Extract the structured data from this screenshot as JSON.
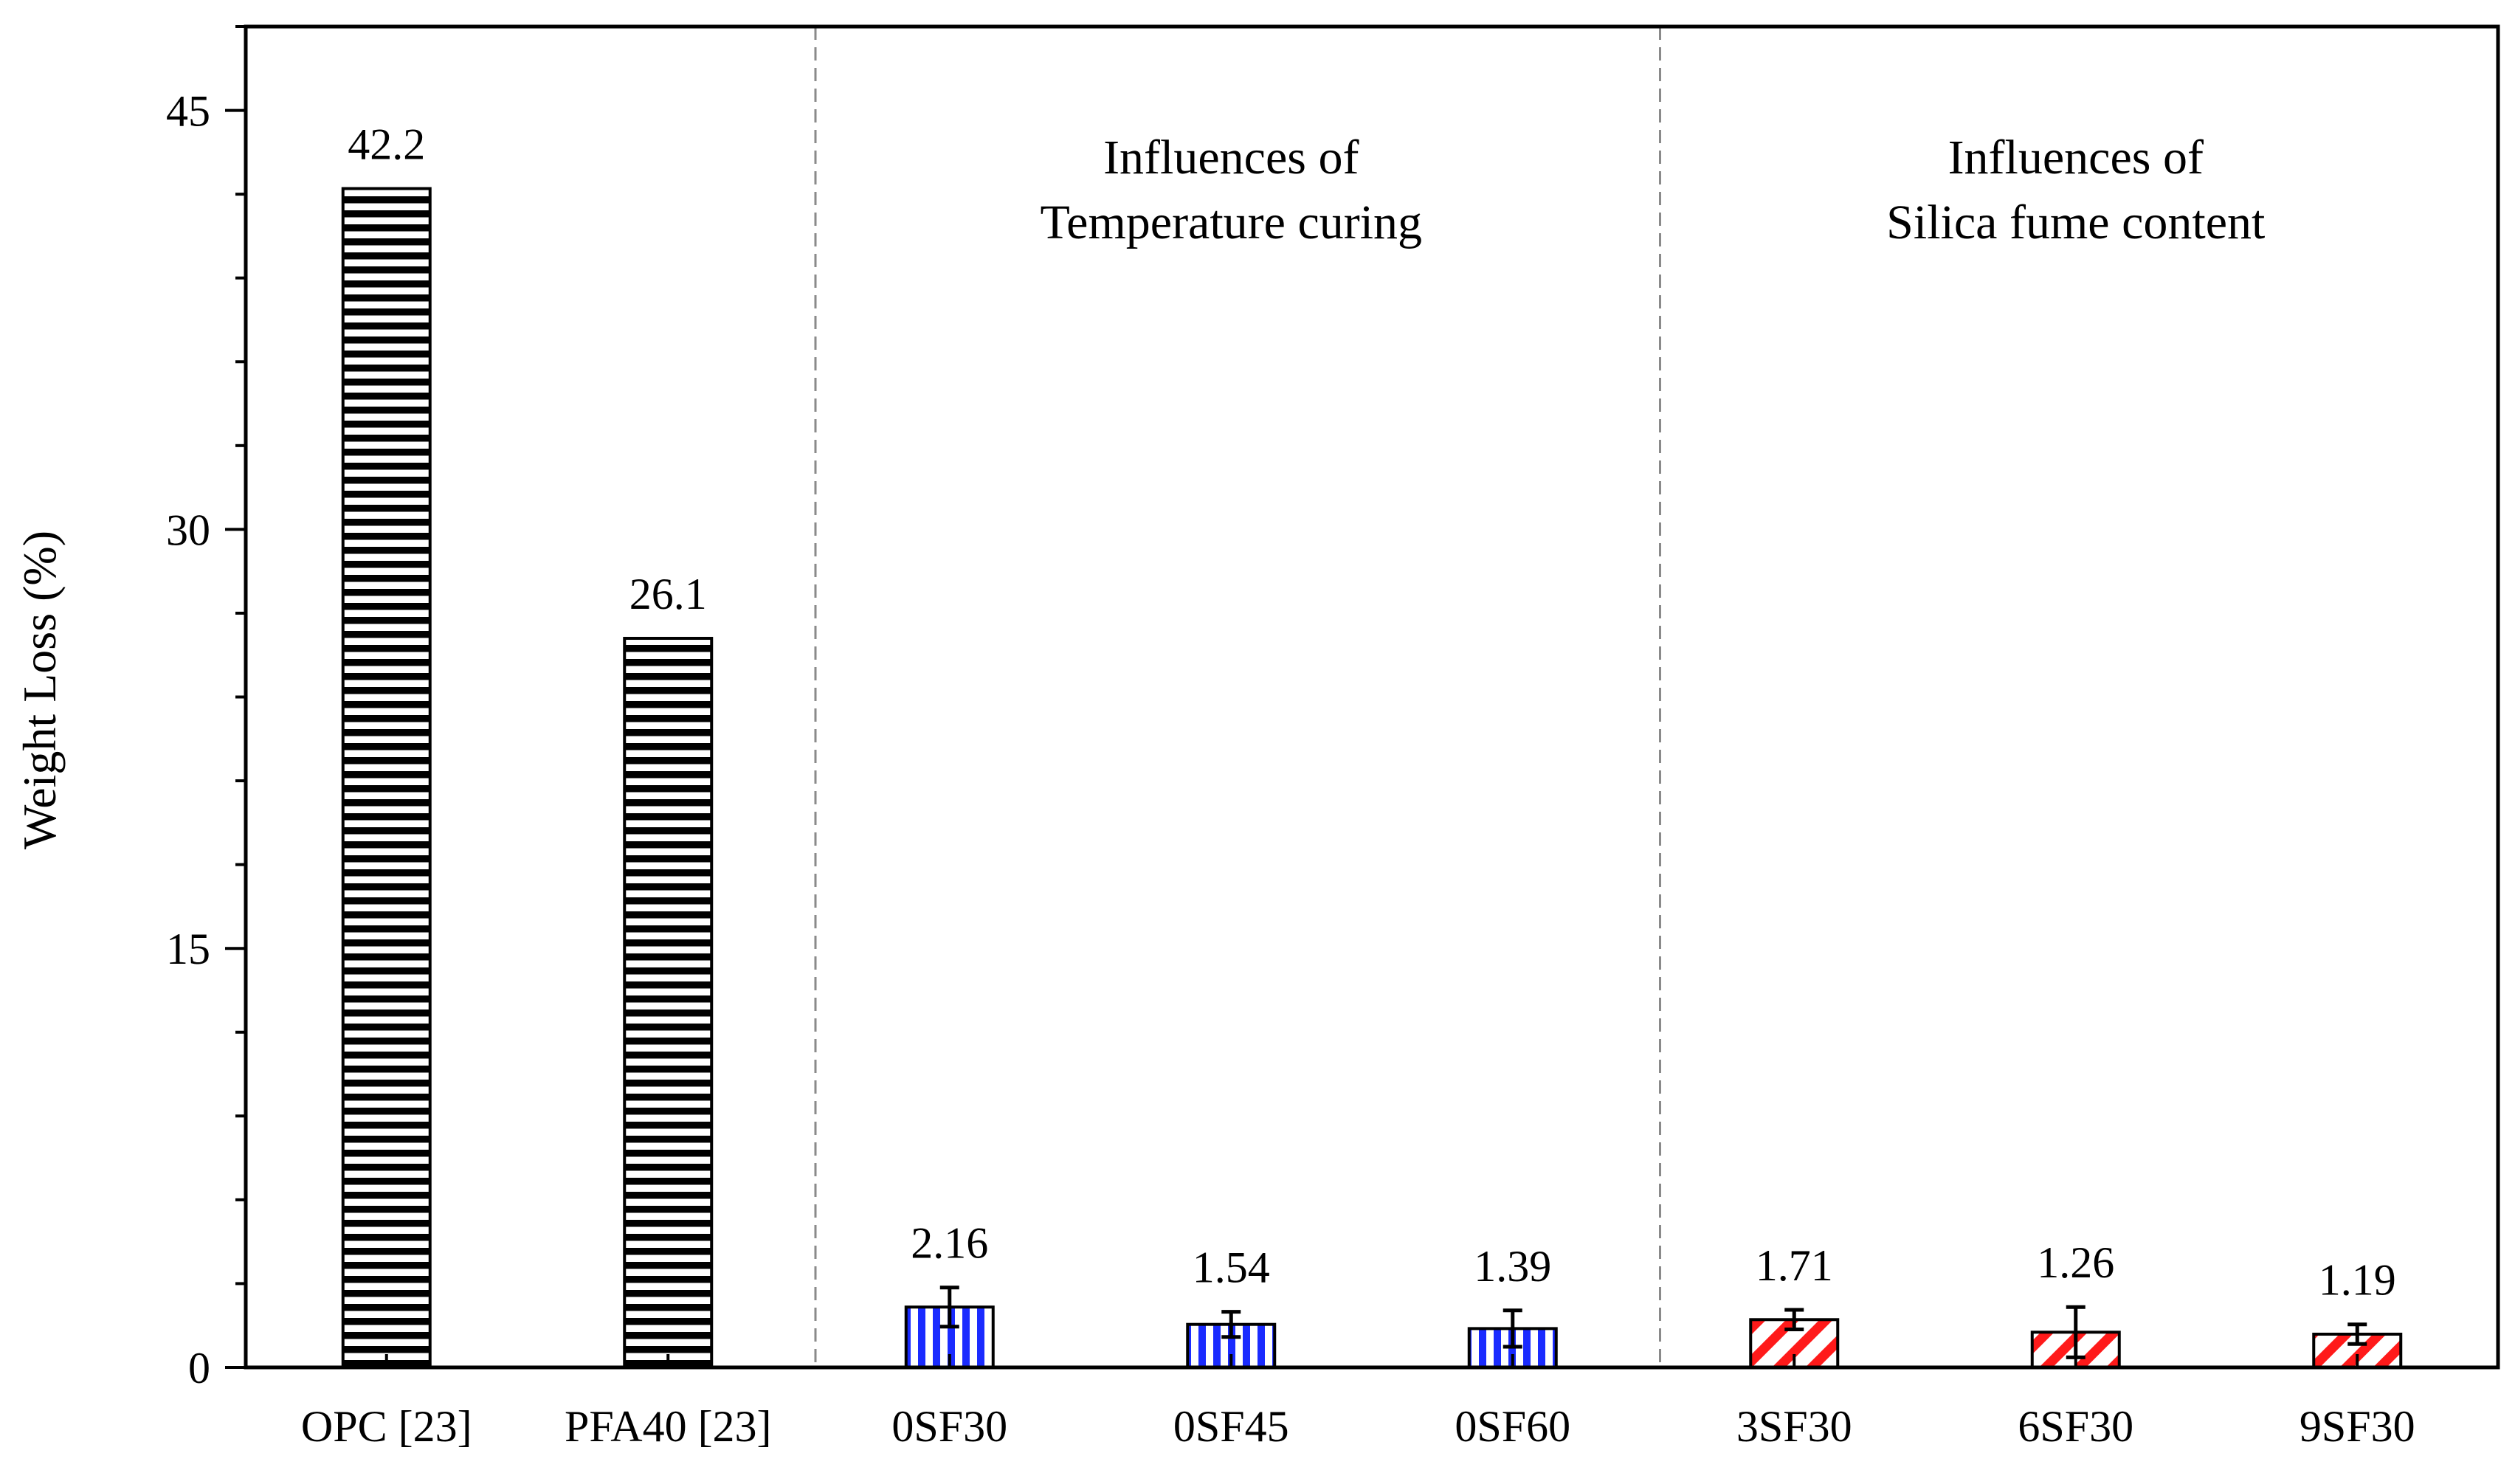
{
  "chart_data": {
    "type": "bar",
    "title": "",
    "xlabel": "",
    "ylabel": "Weight Loss (%)",
    "ylim": [
      0,
      48
    ],
    "yticks": [
      0,
      15,
      30,
      45
    ],
    "grid": false,
    "categories": [
      "OPC [23]",
      "PFA40 [23]",
      "0SF30",
      "0SF45",
      "0SF60",
      "3SF30",
      "6SF30",
      "9SF30"
    ],
    "values": [
      42.2,
      26.1,
      2.16,
      1.54,
      1.39,
      1.71,
      1.26,
      1.19
    ],
    "value_labels": [
      "42.2",
      "26.1",
      "2.16",
      "1.54",
      "1.39",
      "1.71",
      "1.26",
      "1.19"
    ],
    "error_bars": [
      null,
      null,
      0.7,
      0.45,
      0.65,
      0.35,
      0.9,
      0.35
    ],
    "groups": [
      {
        "name": "reference",
        "pattern": "horizontal-stripes",
        "color": "#000000",
        "indices": [
          0,
          1
        ]
      },
      {
        "name": "temperature",
        "pattern": "vertical-stripes",
        "color": "#1a2bff",
        "indices": [
          2,
          3,
          4
        ]
      },
      {
        "name": "silica",
        "pattern": "diagonal-stripes",
        "color": "#ff1a1a",
        "indices": [
          5,
          6,
          7
        ]
      }
    ],
    "separators_after_category": [
      1,
      4
    ],
    "annotations": [
      {
        "lines": [
          "Influences of",
          "Temperature curing"
        ],
        "over_categories": [
          2,
          4
        ]
      },
      {
        "lines": [
          "Influences of",
          "Silica fume content"
        ],
        "over_categories": [
          5,
          7
        ]
      }
    ]
  }
}
